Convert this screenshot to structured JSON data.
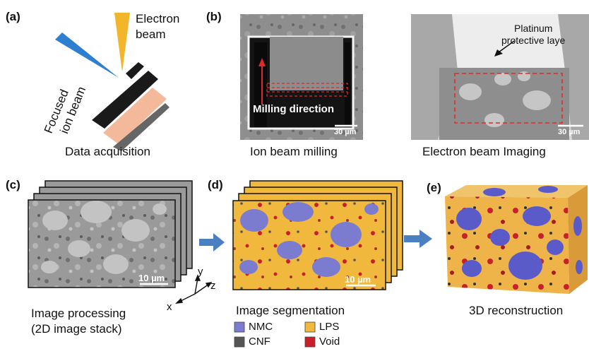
{
  "panels": {
    "a": {
      "label": "(a)",
      "electron_beam": [
        "Electron",
        "beam"
      ],
      "focused_ion_beam": [
        "Focused",
        "ion beam"
      ],
      "caption": "Data acquisition"
    },
    "b": {
      "label": "(b)",
      "milling_direction": "Milling direction",
      "scale_left": "30 µm",
      "caption_left": "Ion beam milling",
      "platinum": [
        "Platinum",
        "protective laye"
      ],
      "scale_right": "30 µm",
      "caption_right": "Electron beam Imaging"
    },
    "c": {
      "label": "(c)",
      "scale": "10 µm",
      "axes": {
        "x": "x",
        "y": "y",
        "z": "z"
      },
      "caption": [
        "Image processing",
        "(2D image stack)"
      ]
    },
    "d": {
      "label": "(d)",
      "scale": "10 µm",
      "caption": "Image segmentation",
      "legend": [
        {
          "name": "NMC",
          "color": "#7b7bd0"
        },
        {
          "name": "LPS",
          "color": "#f0b93e"
        },
        {
          "name": "CNF",
          "color": "#555555"
        },
        {
          "name": "Void",
          "color": "#c8202a"
        }
      ]
    },
    "e": {
      "label": "(e)",
      "caption": "3D reconstruction"
    }
  },
  "colors": {
    "arrow": "#4a7fc1",
    "ion_beam": "#2f7fd0",
    "electron_beam": "#f3b52a",
    "sample": "#f4b89a"
  }
}
